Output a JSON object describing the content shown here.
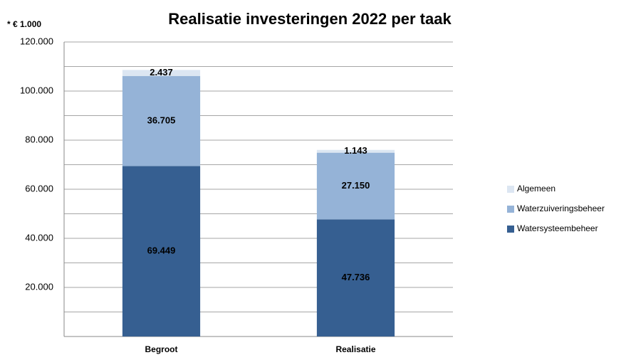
{
  "chart_data": {
    "type": "stacked_bar",
    "title": "Realisatie investeringen 2022 per taak",
    "y_unit_label": "* € 1.000",
    "categories": [
      "Begroot",
      "Realisatie"
    ],
    "series": [
      {
        "name": "Watersysteembeheer",
        "color": "#365f91",
        "values": [
          69449,
          47736
        ],
        "value_labels": [
          "69.449",
          "47.736"
        ]
      },
      {
        "name": "Waterzuiveringsbeheer",
        "color": "#95b3d7",
        "values": [
          36705,
          27150
        ],
        "value_labels": [
          "36.705",
          "27.150"
        ]
      },
      {
        "name": "Algemeen",
        "color": "#dce6f2",
        "values": [
          2437,
          1143
        ],
        "value_labels": [
          "2.437",
          "1.143"
        ]
      }
    ],
    "ylim": [
      0,
      120000
    ],
    "yticks": [
      {
        "value": 20000,
        "label": "20.000"
      },
      {
        "value": 40000,
        "label": "40.000"
      },
      {
        "value": 60000,
        "label": "60.000"
      },
      {
        "value": 80000,
        "label": "80.000"
      },
      {
        "value": 100000,
        "label": "100.000"
      },
      {
        "value": 120000,
        "label": "120.000"
      }
    ],
    "minor_yticks": [
      10000,
      30000,
      50000,
      70000,
      90000,
      110000
    ],
    "grid": true,
    "legend": "right"
  }
}
